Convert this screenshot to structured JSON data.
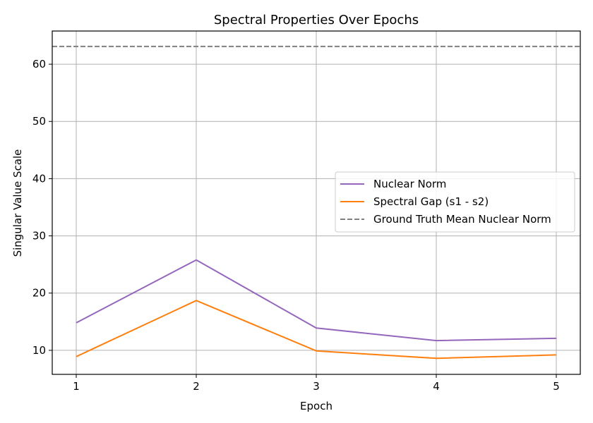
{
  "chart_data": {
    "type": "line",
    "title": "Spectral Properties Over Epochs",
    "xlabel": "Epoch",
    "ylabel": "Singular Value Scale",
    "x": [
      1,
      2,
      3,
      4,
      5
    ],
    "xticks": [
      "1",
      "2",
      "3",
      "4",
      "5"
    ],
    "yticks": [
      10,
      20,
      30,
      40,
      50,
      60
    ],
    "xlim": [
      0.8,
      5.2
    ],
    "ylim": [
      5.8,
      65.8
    ],
    "grid": true,
    "legend_position": "center-right",
    "series": [
      {
        "name": "Nuclear Norm",
        "color": "#9467bd",
        "style": "solid",
        "values": [
          14.8,
          25.8,
          13.9,
          11.7,
          12.1
        ]
      },
      {
        "name": "Spectral Gap (s1 - s2)",
        "color": "#ff7f0e",
        "style": "solid",
        "values": [
          8.9,
          18.7,
          9.9,
          8.6,
          9.2
        ]
      }
    ],
    "reference_lines": [
      {
        "name": "Ground Truth Mean Nuclear Norm",
        "color": "#808080",
        "style": "dashed",
        "y": 63.1
      }
    ]
  }
}
